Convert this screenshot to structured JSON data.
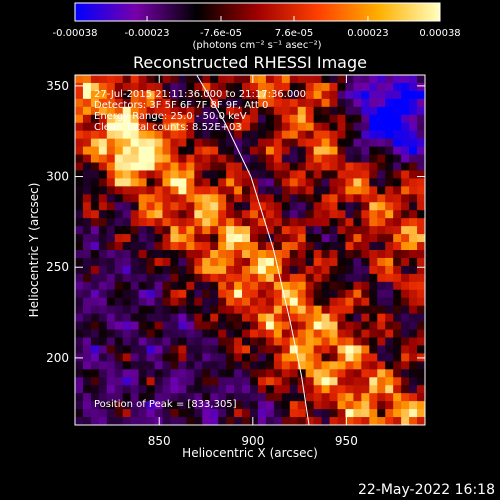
{
  "chart_data": {
    "type": "heatmap",
    "title": "Reconstructed RHESSI Image",
    "xlabel": "Heliocentric X (arcsec)",
    "ylabel": "Heliocentric Y (arcsec)",
    "xlim": [
      805,
      992
    ],
    "ylim": [
      163,
      356
    ],
    "x_ticks": [
      850,
      900,
      950
    ],
    "y_ticks": [
      200,
      250,
      300,
      350
    ],
    "x_tick_labels": [
      "850",
      "900",
      "950"
    ],
    "y_tick_labels": [
      "200",
      "250",
      "300",
      "350"
    ],
    "colorbar": {
      "range": [
        -0.00038,
        0.00038
      ],
      "tick_values": [
        -0.00038,
        -0.00023,
        -7.6e-05,
        7.6e-05,
        0.00023,
        0.00038
      ],
      "tick_labels": [
        "-0.00038",
        "-0.00023",
        "-7.6e-05",
        "7.6e-05",
        "0.00023",
        "0.00038"
      ],
      "unit_label": "(photons cm⁻² s⁻¹ asec⁻²)",
      "colors": [
        "#0000ff",
        "#7700aa",
        "#000000",
        "#a00000",
        "#ff4000",
        "#ffb000",
        "#ffffc0"
      ]
    },
    "annotations": {
      "time_range": "27-Jul-2015 21:11:36.000 to 21:17:36.000",
      "detectors": "Detectors: 3F 5F 6F 7F 8F 9F, Att 0",
      "energy": "Energy Range: 25.0 - 50.0 keV",
      "clean": "Clean     Total counts: 8.52E+03",
      "peak": "Position of Peak = [833,305]"
    },
    "limb_curve": [
      [
        870,
        356
      ],
      [
        885,
        330
      ],
      [
        899,
        300
      ],
      [
        911,
        260
      ],
      [
        920,
        220
      ],
      [
        926,
        190
      ],
      [
        930,
        163
      ]
    ],
    "footer_date": "22-May-2022 16:18"
  }
}
